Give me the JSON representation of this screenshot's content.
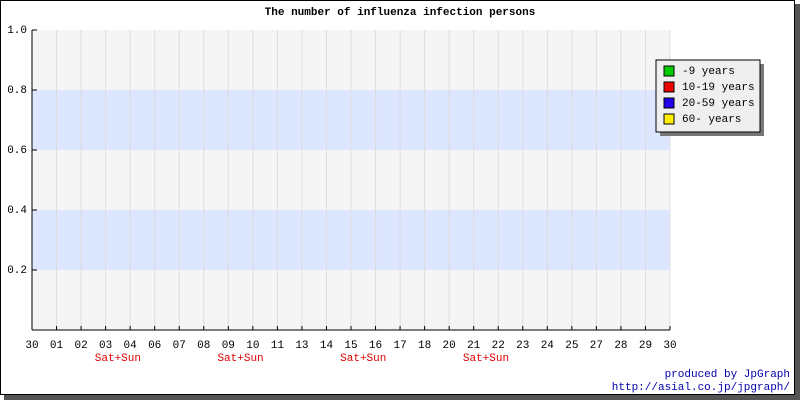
{
  "chart_data": {
    "type": "line",
    "title": "The number of influenza infection persons",
    "categories": [
      "30",
      "01",
      "02",
      "03",
      "04",
      "06",
      "07",
      "08",
      "09",
      "10",
      "11",
      "13",
      "14",
      "15",
      "16",
      "17",
      "18",
      "20",
      "21",
      "22",
      "23",
      "24",
      "25",
      "27",
      "28",
      "29",
      "30"
    ],
    "x_sublabels": [
      null,
      null,
      null,
      "Sat+Sun",
      null,
      null,
      null,
      null,
      "Sat+Sun",
      null,
      null,
      null,
      null,
      "Sat+Sun",
      null,
      null,
      null,
      null,
      "Sat+Sun",
      null,
      null,
      null,
      null,
      null,
      null,
      null,
      null
    ],
    "series": [
      {
        "name": "-9 years",
        "color": "#00cc00",
        "values": [
          null,
          null,
          null,
          null,
          null,
          null,
          null,
          null,
          null,
          null,
          null,
          null,
          null,
          null,
          null,
          null,
          null,
          null,
          null,
          null,
          null,
          null,
          null,
          null,
          null,
          null,
          null
        ]
      },
      {
        "name": "10-19 years",
        "color": "#ee0000",
        "values": [
          null,
          null,
          null,
          null,
          null,
          null,
          null,
          null,
          null,
          null,
          null,
          null,
          null,
          null,
          null,
          null,
          null,
          null,
          null,
          null,
          null,
          null,
          null,
          null,
          null,
          null,
          null
        ]
      },
      {
        "name": "20-59 years",
        "color": "#2200ee",
        "values": [
          null,
          null,
          null,
          null,
          null,
          null,
          null,
          null,
          null,
          null,
          null,
          null,
          null,
          null,
          null,
          null,
          null,
          null,
          null,
          null,
          null,
          null,
          null,
          null,
          null,
          null,
          null
        ]
      },
      {
        "name": "60- years",
        "color": "#ffee00",
        "values": [
          null,
          null,
          null,
          null,
          null,
          null,
          null,
          null,
          null,
          null,
          null,
          null,
          null,
          null,
          null,
          null,
          null,
          null,
          null,
          null,
          null,
          null,
          null,
          null,
          null,
          null,
          null
        ]
      }
    ],
    "ylim": [
      0,
      1
    ],
    "yticks": [
      0.2,
      0.4,
      0.6,
      0.8,
      {
        "value": 1,
        "label": "1.0"
      }
    ],
    "grid": true,
    "band_color": "#dde6ff",
    "legend": "top-right"
  },
  "footer": {
    "line1": "produced by JpGraph",
    "line2": "http://asial.co.jp/jpgraph/"
  }
}
